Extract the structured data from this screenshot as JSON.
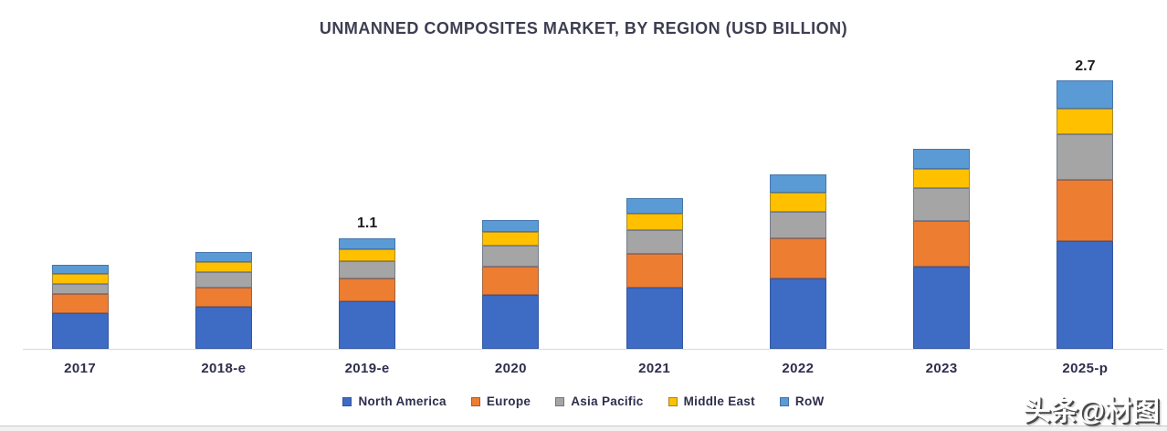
{
  "title": "UNMANNED COMPOSITES MARKET, BY REGION (USD BILLION)",
  "watermark": "头条@材图",
  "chart_data": {
    "type": "bar",
    "stacked": true,
    "title": "UNMANNED COMPOSITES MARKET, BY REGION (USD BILLION)",
    "categories": [
      "2017",
      "2018-e",
      "2019-e",
      "2020",
      "2021",
      "2022",
      "2023",
      "2025-p"
    ],
    "series": [
      {
        "name": "North America",
        "color": "#3E6BC4",
        "values": [
          0.35,
          0.42,
          0.47,
          0.54,
          0.61,
          0.7,
          0.82,
          1.07
        ]
      },
      {
        "name": "Europe",
        "color": "#ED7D31",
        "values": [
          0.19,
          0.19,
          0.23,
          0.28,
          0.34,
          0.4,
          0.45,
          0.61
        ]
      },
      {
        "name": "Asia Pacific",
        "color": "#A5A5A5",
        "values": [
          0.1,
          0.15,
          0.17,
          0.21,
          0.24,
          0.26,
          0.33,
          0.45
        ]
      },
      {
        "name": "Middle East",
        "color": "#FFC000",
        "values": [
          0.1,
          0.1,
          0.12,
          0.14,
          0.16,
          0.19,
          0.19,
          0.25
        ]
      },
      {
        "name": "RoW",
        "color": "#5B9BD5",
        "values": [
          0.09,
          0.1,
          0.11,
          0.12,
          0.15,
          0.18,
          0.2,
          0.28
        ]
      }
    ],
    "annotations": [
      {
        "category": "2019-e",
        "label": "1.1"
      },
      {
        "category": "2025-p",
        "label": "2.7"
      }
    ],
    "totals_shown": {
      "2019-e": 1.1,
      "2025-p": 2.7
    },
    "xlabel": "",
    "ylabel": "",
    "ylim": [
      0,
      3
    ],
    "grid": false,
    "legend_position": "bottom"
  }
}
